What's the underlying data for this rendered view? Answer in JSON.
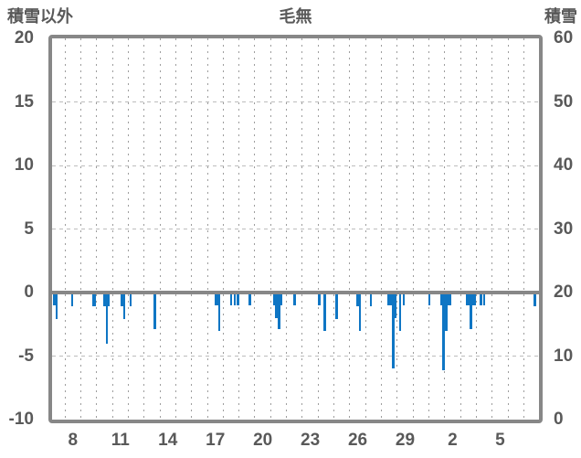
{
  "header": {
    "left_axis_title": "積雪以外",
    "chart_title": "毛無",
    "right_axis_title": "積雪"
  },
  "chart_data": {
    "type": "bar",
    "title": "毛無",
    "left_ylabel": "積雪以外",
    "right_ylabel": "積雪",
    "orientation": "bars hang downward from the zero line of the left axis",
    "x_axis": {
      "unit": "day of month",
      "range": [
        7.18,
        37.96
      ],
      "gridline_step_days": 1,
      "ticks": [
        {
          "pos": 8.5,
          "label": "8"
        },
        {
          "pos": 11.5,
          "label": "11"
        },
        {
          "pos": 14.5,
          "label": "14"
        },
        {
          "pos": 17.5,
          "label": "17"
        },
        {
          "pos": 20.5,
          "label": "20"
        },
        {
          "pos": 23.5,
          "label": "23"
        },
        {
          "pos": 26.5,
          "label": "26"
        },
        {
          "pos": 29.5,
          "label": "29"
        },
        {
          "pos": 32.5,
          "label": "2"
        },
        {
          "pos": 35.5,
          "label": "5"
        }
      ]
    },
    "left_axis": {
      "range": [
        -10,
        20
      ],
      "ticks": [
        {
          "v": 20,
          "label": "20"
        },
        {
          "v": 15,
          "label": "15"
        },
        {
          "v": 10,
          "label": "10"
        },
        {
          "v": 5,
          "label": "5"
        },
        {
          "v": 0,
          "label": "0"
        },
        {
          "v": -5,
          "label": "-5"
        },
        {
          "v": -10,
          "label": "-10"
        }
      ]
    },
    "right_axis": {
      "range": [
        0,
        60
      ],
      "ticks": [
        {
          "v": 20,
          "label": "60"
        },
        {
          "v": 15,
          "label": "50"
        },
        {
          "v": 10,
          "label": "40"
        },
        {
          "v": 5,
          "label": "30"
        },
        {
          "v": 0,
          "label": "20"
        },
        {
          "v": -5,
          "label": "10"
        },
        {
          "v": -10,
          "label": "0"
        }
      ]
    },
    "horizontal_gridlines_at": [
      15,
      10,
      5,
      -5
    ],
    "bars": [
      {
        "d": 7.36,
        "v": -1.0,
        "w": 0.28
      },
      {
        "d": 7.46,
        "v": -2.1,
        "w": 0.13
      },
      {
        "d": 8.44,
        "v": -1.1,
        "w": 0.15
      },
      {
        "d": 9.84,
        "v": -1.1,
        "w": 0.28
      },
      {
        "d": 10.61,
        "v": -1.1,
        "w": 0.44
      },
      {
        "d": 10.64,
        "v": -4.0,
        "w": 0.15
      },
      {
        "d": 11.65,
        "v": -1.1,
        "w": 0.3
      },
      {
        "d": 11.73,
        "v": -2.1,
        "w": 0.13
      },
      {
        "d": 12.15,
        "v": -1.1,
        "w": 0.14
      },
      {
        "d": 13.69,
        "v": -2.9,
        "w": 0.16
      },
      {
        "d": 17.64,
        "v": -1.0,
        "w": 0.36
      },
      {
        "d": 17.76,
        "v": -3.0,
        "w": 0.14
      },
      {
        "d": 18.49,
        "v": -1.0,
        "w": 0.15
      },
      {
        "d": 18.73,
        "v": -1.0,
        "w": 0.14
      },
      {
        "d": 18.95,
        "v": -1.0,
        "w": 0.19
      },
      {
        "d": 19.69,
        "v": -1.0,
        "w": 0.15
      },
      {
        "d": 21.47,
        "v": -1.0,
        "w": 0.58
      },
      {
        "d": 21.45,
        "v": -2.0,
        "w": 0.35
      },
      {
        "d": 21.52,
        "v": -2.9,
        "w": 0.17
      },
      {
        "d": 22.51,
        "v": -1.0,
        "w": 0.14
      },
      {
        "d": 24.07,
        "v": -1.0,
        "w": 0.16
      },
      {
        "d": 24.4,
        "v": -3.0,
        "w": 0.16
      },
      {
        "d": 25.18,
        "v": -2.1,
        "w": 0.15
      },
      {
        "d": 26.56,
        "v": -1.1,
        "w": 0.26
      },
      {
        "d": 26.63,
        "v": -3.0,
        "w": 0.13
      },
      {
        "d": 27.35,
        "v": -1.1,
        "w": 0.14
      },
      {
        "d": 28.65,
        "v": -1.0,
        "w": 0.56
      },
      {
        "d": 28.73,
        "v": -6.0,
        "w": 0.16
      },
      {
        "d": 28.89,
        "v": -2.0,
        "w": 0.15
      },
      {
        "d": 29.19,
        "v": -3.0,
        "w": 0.15
      },
      {
        "d": 29.42,
        "v": -1.0,
        "w": 0.16
      },
      {
        "d": 31.03,
        "v": -1.0,
        "w": 0.15
      },
      {
        "d": 31.93,
        "v": -6.1,
        "w": 0.15
      },
      {
        "d": 32.07,
        "v": -1.0,
        "w": 0.64
      },
      {
        "d": 32.11,
        "v": -3.0,
        "w": 0.14
      },
      {
        "d": 33.65,
        "v": -1.0,
        "w": 0.62
      },
      {
        "d": 33.65,
        "v": -2.9,
        "w": 0.17
      },
      {
        "d": 34.28,
        "v": -1.0,
        "w": 0.15
      },
      {
        "d": 34.5,
        "v": -1.0,
        "w": 0.14
      },
      {
        "d": 37.7,
        "v": -1.1,
        "w": 0.15
      }
    ],
    "colors": {
      "bar": "#0f76c4",
      "frame": "#878787",
      "vgrid": "#9d9d9d",
      "hgrid": "#bdbdbd",
      "text": "#595959",
      "background": "#ffffff"
    }
  }
}
